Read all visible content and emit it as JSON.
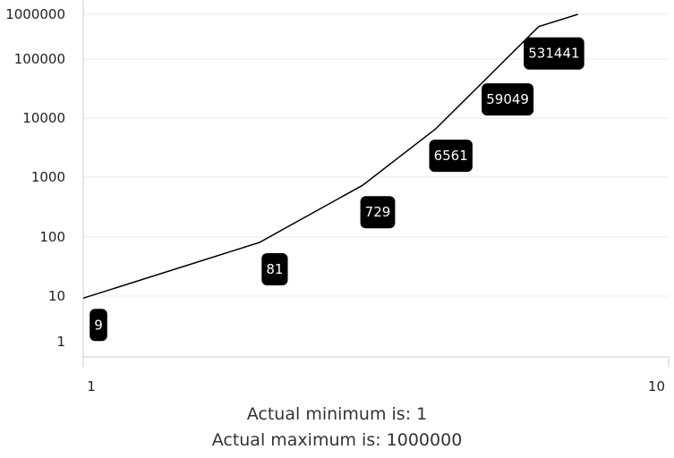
{
  "chart_data": {
    "type": "line",
    "x_scale": "log",
    "y_scale": "log",
    "x": [
      1,
      2,
      3,
      4,
      5,
      6,
      7
    ],
    "series": [
      {
        "values": [
          9,
          81,
          729,
          6561,
          59049,
          531441,
          1000000
        ]
      }
    ],
    "data_labels": [
      "9",
      "81",
      "729",
      "6561",
      "59049",
      "531441"
    ],
    "xlim": [
      1,
      10
    ],
    "ylim": [
      1,
      1000000
    ],
    "x_ticks": [
      {
        "value": 1,
        "label": "1"
      },
      {
        "value": 10,
        "label": "10"
      }
    ],
    "y_ticks": [
      {
        "value": 1,
        "label": "1"
      },
      {
        "value": 10,
        "label": "10"
      },
      {
        "value": 100,
        "label": "100"
      },
      {
        "value": 1000,
        "label": "1000"
      },
      {
        "value": 10000,
        "label": "10000"
      },
      {
        "value": 100000,
        "label": "100000"
      },
      {
        "value": 1000000,
        "label": "1000000"
      }
    ],
    "grid": true,
    "line_color": "#000000",
    "label_background": "#000000",
    "label_text_color": "#ffffff",
    "grid_color": "#e8e8e8",
    "axis_color": "#cccccc",
    "caption_min": "Actual minimum is: 1",
    "caption_max": "Actual maximum is: 1000000"
  }
}
